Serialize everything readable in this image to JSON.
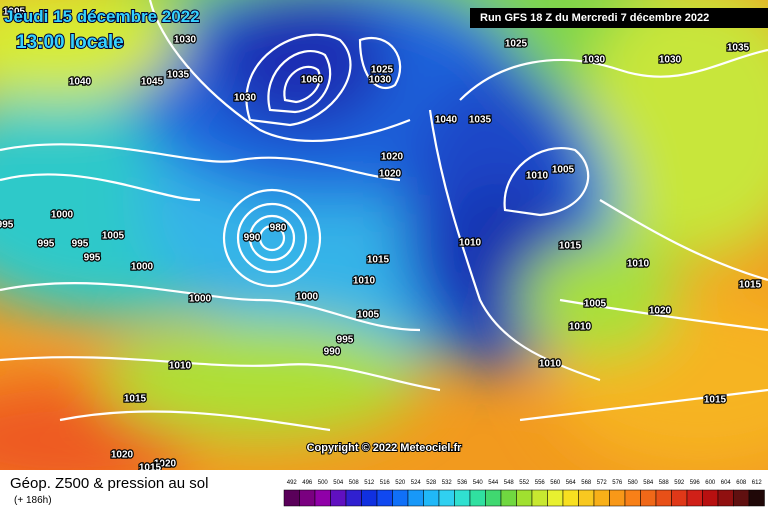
{
  "header": {
    "date": "Jeudi 15 décembre 2022",
    "time": "13:00 locale",
    "run": "Run GFS 18 Z du Mercredi 7 décembre 2022"
  },
  "footer": {
    "copyright": "Copyright © 2022 Meteociel.fr"
  },
  "legend": {
    "title": "Géop. Z500 & pression au sol",
    "lead": "(+ 186h)",
    "values": [
      "492",
      "496",
      "500",
      "504",
      "508",
      "512",
      "516",
      "520",
      "524",
      "528",
      "532",
      "536",
      "540",
      "544",
      "548",
      "552",
      "556",
      "560",
      "564",
      "568",
      "572",
      "576",
      "580",
      "584",
      "588",
      "592",
      "596",
      "600",
      "604",
      "608",
      "612"
    ],
    "colors": [
      "#5a005a",
      "#7a0080",
      "#9000a8",
      "#6010c0",
      "#3020d0",
      "#1030e0",
      "#1048f0",
      "#1070f8",
      "#1898f8",
      "#20b8f8",
      "#30d0f0",
      "#30e0d0",
      "#30e0a0",
      "#40d870",
      "#70d840",
      "#a0e030",
      "#c8e830",
      "#e8f030",
      "#f8e020",
      "#f8c820",
      "#f8b018",
      "#f89818",
      "#f88018",
      "#f06818",
      "#e85018",
      "#e03818",
      "#d02018",
      "#b81010",
      "#901010",
      "#601010",
      "#200808"
    ]
  },
  "isobars": [
    "1005",
    "1030",
    "1040",
    "1045",
    "1035",
    "1030",
    "1060",
    "1025",
    "1030",
    "1025",
    "1030",
    "1030",
    "1035",
    "1040",
    "1035",
    "1020",
    "1020",
    "1010",
    "1005",
    "1000",
    "995",
    "995",
    "995",
    "1005",
    "1000",
    "995",
    "990",
    "980",
    "1010",
    "1015",
    "1015",
    "1010",
    "1015",
    "1010",
    "1000",
    "1000",
    "1005",
    "1005",
    "1020",
    "1010",
    "995",
    "990",
    "1010",
    "1010",
    "1015",
    "1015",
    "1020",
    "1020",
    "1015"
  ]
}
